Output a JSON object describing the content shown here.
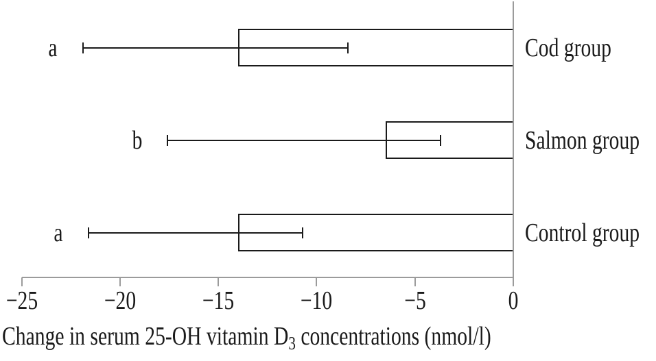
{
  "figure": {
    "caption_main": "Change in serum 25-OH vitamin D",
    "caption_sub": "3",
    "caption_tail": " concentrations (nmol/l)"
  },
  "chart_data": {
    "type": "bar",
    "orientation": "horizontal",
    "title": "",
    "xlabel": "Change in serum 25-OH vitamin D3 concentrations (nmol/l)",
    "ylabel": "",
    "categories": [
      "Cod group",
      "Salmon group",
      "Control group"
    ],
    "values": [
      -14.0,
      -6.5,
      -14.0
    ],
    "error_low": [
      -21.9,
      -17.6,
      -21.6
    ],
    "error_high": [
      -8.4,
      -3.7,
      -10.7
    ],
    "sig_letters": [
      "a",
      "b",
      "a"
    ],
    "xlim": [
      -25,
      0
    ],
    "xticks": [
      -25,
      -20,
      -15,
      -10,
      -5,
      0
    ],
    "xtick_labels": [
      "−25",
      "−20",
      "−15",
      "−10",
      "−5",
      "0"
    ],
    "grid": false,
    "legend": false,
    "bar_fill": "#ffffff",
    "bar_stroke": "#1a1a1a",
    "error_color": "#1a1a1a",
    "axis_color": "#9b9b9b"
  }
}
